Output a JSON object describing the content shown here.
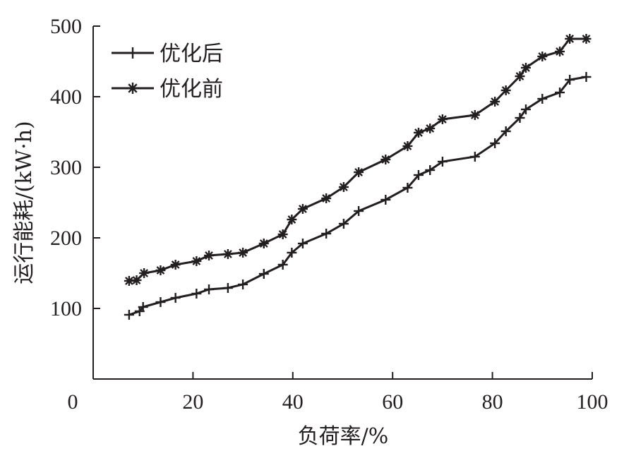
{
  "chart_data": {
    "type": "line",
    "xlabel": "负荷率/%",
    "ylabel": "运行能耗/(kW·h)",
    "xlim": [
      0,
      100
    ],
    "ylim": [
      0,
      500
    ],
    "xticks": [
      0,
      20,
      40,
      60,
      80,
      100
    ],
    "yticks": [
      100,
      200,
      300,
      400,
      500
    ],
    "grid": false,
    "legend_position": "top-left",
    "series": [
      {
        "name": "优化后",
        "marker": "plus",
        "color": "#231f20",
        "points": [
          [
            7.2,
            91
          ],
          [
            9.3,
            96
          ],
          [
            10.0,
            102
          ],
          [
            13.5,
            109
          ],
          [
            16.5,
            115
          ],
          [
            20.7,
            121
          ],
          [
            23.2,
            127
          ],
          [
            27.0,
            129
          ],
          [
            30.0,
            134
          ],
          [
            34.2,
            149
          ],
          [
            38.0,
            162
          ],
          [
            39.8,
            179
          ],
          [
            42.0,
            192
          ],
          [
            46.7,
            206
          ],
          [
            50.2,
            220
          ],
          [
            53.2,
            238
          ],
          [
            58.6,
            254
          ],
          [
            63.0,
            271
          ],
          [
            65.2,
            289
          ],
          [
            67.5,
            296
          ],
          [
            70.0,
            308
          ],
          [
            76.5,
            315
          ],
          [
            80.5,
            334
          ],
          [
            82.7,
            351
          ],
          [
            85.5,
            370
          ],
          [
            86.7,
            382
          ],
          [
            90.0,
            397
          ],
          [
            93.5,
            406
          ],
          [
            95.5,
            424
          ],
          [
            98.8,
            428
          ]
        ]
      },
      {
        "name": "优化前",
        "marker": "asterisk",
        "color": "#231f20",
        "points": [
          [
            7.2,
            139
          ],
          [
            8.7,
            140
          ],
          [
            10.2,
            150
          ],
          [
            13.5,
            154
          ],
          [
            16.5,
            162
          ],
          [
            20.7,
            167
          ],
          [
            23.2,
            175
          ],
          [
            27.0,
            177
          ],
          [
            30.0,
            179
          ],
          [
            34.2,
            192
          ],
          [
            38.0,
            205
          ],
          [
            39.8,
            226
          ],
          [
            42.0,
            241
          ],
          [
            46.7,
            256
          ],
          [
            50.2,
            272
          ],
          [
            53.2,
            293
          ],
          [
            58.6,
            311
          ],
          [
            63.0,
            330
          ],
          [
            65.2,
            349
          ],
          [
            67.5,
            355
          ],
          [
            70.0,
            368
          ],
          [
            76.5,
            374
          ],
          [
            80.5,
            393
          ],
          [
            82.7,
            409
          ],
          [
            85.5,
            429
          ],
          [
            86.7,
            441
          ],
          [
            90.0,
            457
          ],
          [
            93.5,
            464
          ],
          [
            95.5,
            482
          ],
          [
            98.8,
            482
          ]
        ]
      }
    ]
  }
}
